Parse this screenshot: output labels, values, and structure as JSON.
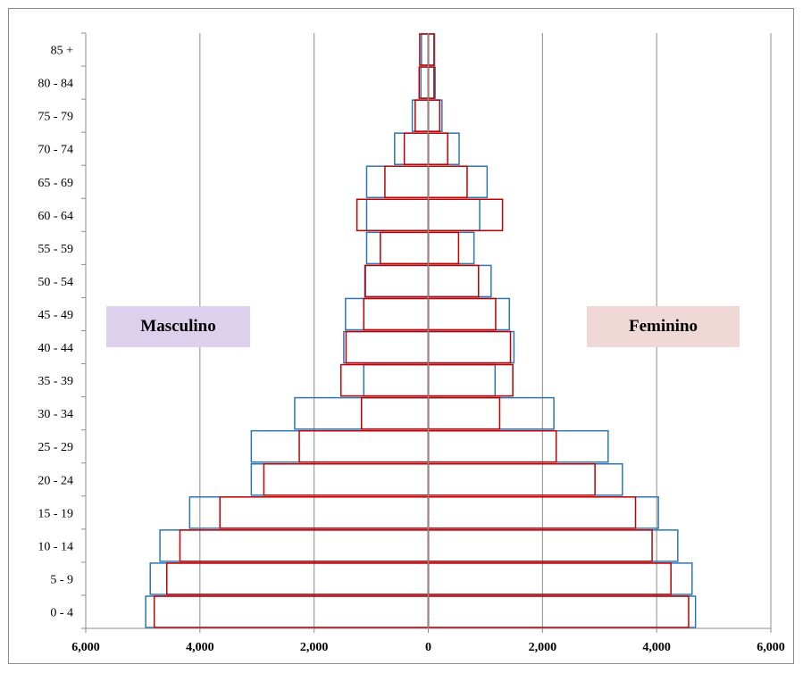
{
  "chart_data": {
    "type": "bar",
    "orientation": "horizontal",
    "layout": "population-pyramid",
    "categories": [
      "0 - 4",
      "5 - 9",
      "10 - 14",
      "15 - 19",
      "20 - 24",
      "25 - 29",
      "30 - 34",
      "35 - 39",
      "40 - 44",
      "45 - 49",
      "50 - 54",
      "55 - 59",
      "60 - 64",
      "65 - 69",
      "70 - 74",
      "75 - 79",
      "80 - 84",
      "85 +"
    ],
    "series": [
      {
        "color": "#2e75b6",
        "male": [
          4950,
          4870,
          4700,
          4180,
          3100,
          3100,
          2340,
          1130,
          1480,
          1450,
          1100,
          1080,
          1080,
          1080,
          590,
          280,
          130,
          120
        ],
        "female": [
          4680,
          4620,
          4370,
          4030,
          3400,
          3150,
          2200,
          1170,
          1500,
          1420,
          1100,
          800,
          900,
          1030,
          540,
          240,
          120,
          110
        ]
      },
      {
        "color": "#c00000",
        "male": [
          4800,
          4580,
          4350,
          3650,
          2880,
          2260,
          1170,
          1530,
          1440,
          1130,
          1110,
          840,
          1250,
          760,
          420,
          230,
          160,
          150
        ],
        "female": [
          4560,
          4250,
          3920,
          3630,
          2920,
          2240,
          1250,
          1480,
          1440,
          1180,
          880,
          530,
          1300,
          680,
          340,
          200,
          100,
          100
        ]
      }
    ],
    "xticks": [
      "6,000",
      "4,000",
      "2,000",
      "0",
      "2,000",
      "4,000",
      "6,000"
    ],
    "xlim": [
      -6000,
      6000
    ],
    "grid": "vertical",
    "labels": {
      "male": "Masculino",
      "female": "Feminino"
    },
    "colors": {
      "male_box": "#dcd0ec",
      "female_box": "#f0d8d7"
    }
  }
}
